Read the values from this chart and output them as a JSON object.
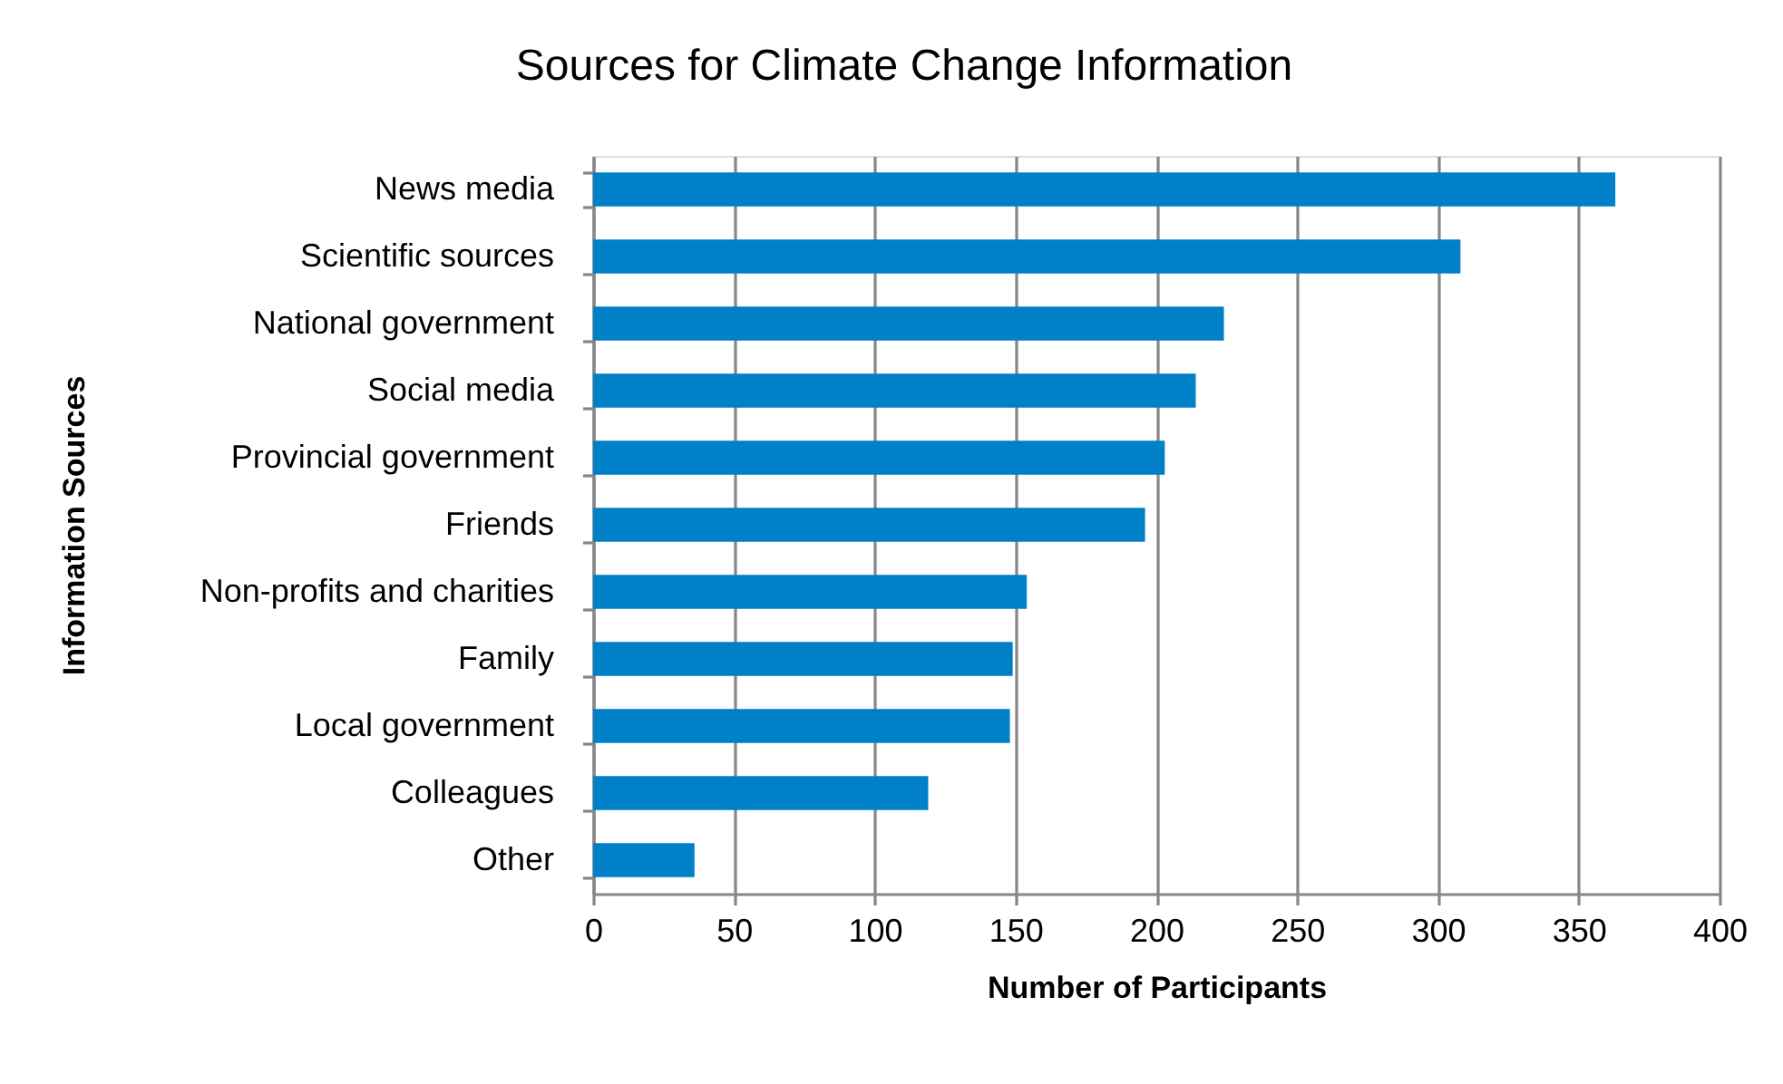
{
  "chart_data": {
    "type": "bar",
    "orientation": "horizontal",
    "title": "Sources for Climate Change Information",
    "xlabel": "Number of Participants",
    "ylabel": "Information Sources",
    "categories": [
      "News media",
      "Scientific sources",
      "National government",
      "Social media",
      "Provincial government",
      "Friends",
      "Non-profits and charities",
      "Family",
      "Local government",
      "Colleagues",
      "Other"
    ],
    "values": [
      363,
      308,
      224,
      214,
      203,
      196,
      154,
      149,
      148,
      119,
      36
    ],
    "color": "#0080c6",
    "xlim": [
      0,
      400
    ],
    "xticks": [
      0,
      50,
      100,
      150,
      200,
      250,
      300,
      350,
      400
    ],
    "grid": "x"
  }
}
